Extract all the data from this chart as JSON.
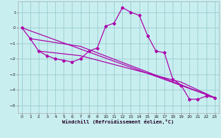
{
  "xlabel": "Windchill (Refroidissement éolien,°C)",
  "background_color": "#c8eef0",
  "line_color": "#aa00aa",
  "grid_color": "#99cccc",
  "xlim": [
    -0.5,
    23.5
  ],
  "ylim": [
    -5.5,
    1.7
  ],
  "x_ticks": [
    0,
    1,
    2,
    3,
    4,
    5,
    6,
    7,
    8,
    9,
    10,
    11,
    12,
    13,
    14,
    15,
    16,
    17,
    18,
    19,
    20,
    21,
    22,
    23
  ],
  "y_ticks": [
    -5,
    -4,
    -3,
    -2,
    -1,
    0,
    1
  ],
  "hourly_x": [
    0,
    1,
    2,
    3,
    4,
    5,
    6,
    7,
    8,
    9,
    10,
    11,
    12,
    13,
    14,
    15,
    16,
    17,
    18,
    19,
    20,
    21,
    22,
    23
  ],
  "hourly_y": [
    0.0,
    -0.7,
    -1.5,
    -1.8,
    -2.0,
    -2.1,
    -2.2,
    -2.0,
    -1.5,
    -1.3,
    0.1,
    0.3,
    1.3,
    1.0,
    0.8,
    -0.5,
    -1.5,
    -1.6,
    -3.3,
    -3.7,
    -4.6,
    -4.6,
    -4.4,
    -4.5
  ],
  "trend1_x": [
    0,
    23
  ],
  "trend1_y": [
    0.0,
    -4.5
  ],
  "trend2_x": [
    1,
    7,
    23
  ],
  "trend2_y": [
    -0.7,
    -1.2,
    -4.5
  ],
  "trend3_x": [
    2,
    7,
    19,
    23
  ],
  "trend3_y": [
    -1.5,
    -1.8,
    -3.5,
    -4.5
  ]
}
